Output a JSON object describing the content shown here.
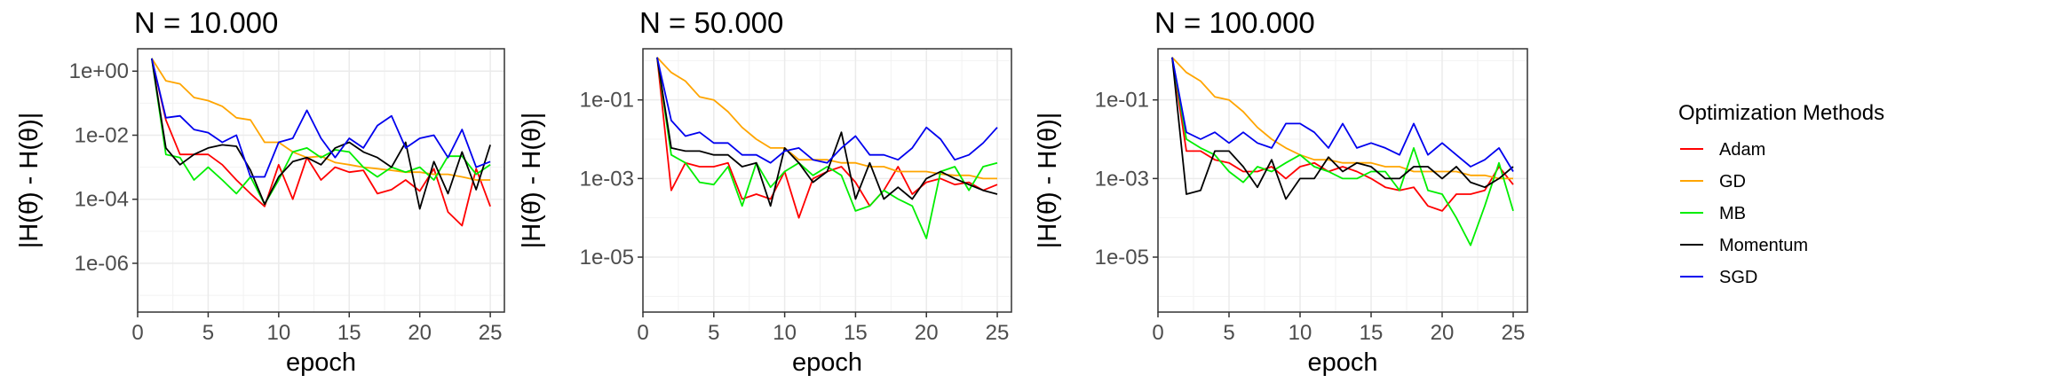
{
  "chart_data": {
    "type": "line",
    "y_scale": "log10",
    "grid": true,
    "legend": {
      "title": "Optimization Methods",
      "position": "right",
      "items": [
        {
          "name": "Adam",
          "color": "#ff0000"
        },
        {
          "name": "GD",
          "color": "#ffa500"
        },
        {
          "name": "MB",
          "color": "#00ee00"
        },
        {
          "name": "Momentum",
          "color": "#000000"
        },
        {
          "name": "SGD",
          "color": "#0000ee"
        }
      ]
    },
    "panels": [
      {
        "title": "N = 10.000",
        "xlabel": "epoch",
        "ylabel": "|H(θ̂) - H(θ)|",
        "xlim": [
          0,
          26
        ],
        "ylim": [
          3e-08,
          5
        ],
        "x_ticks": [
          0,
          5,
          10,
          15,
          20,
          25
        ],
        "x_tick_labels": [
          "0",
          "5",
          "10",
          "15",
          "20",
          "25"
        ],
        "y_ticks": [
          1e-06,
          0.0001,
          0.01,
          1
        ],
        "y_tick_labels": [
          "1e-06",
          "1e-04",
          "1e-02",
          "1e+00"
        ],
        "x": [
          1,
          2,
          3,
          4,
          5,
          6,
          7,
          8,
          9,
          10,
          11,
          12,
          13,
          14,
          15,
          16,
          17,
          18,
          19,
          20,
          21,
          22,
          23,
          24,
          25
        ],
        "series": [
          {
            "name": "Adam",
            "color": "#ff0000",
            "values": [
              2.5,
              0.03,
              0.0025,
              0.0025,
              0.0025,
              0.0012,
              0.0004,
              0.00015,
              6e-05,
              0.0012,
              0.0001,
              0.002,
              0.0004,
              0.001,
              0.0007,
              0.0008,
              0.00015,
              0.0002,
              0.0004,
              0.00018,
              0.0009,
              4e-05,
              1.5e-05,
              0.0009,
              6e-05
            ]
          },
          {
            "name": "GD",
            "color": "#ffa500",
            "values": [
              2.5,
              0.5,
              0.4,
              0.15,
              0.12,
              0.08,
              0.035,
              0.03,
              0.006,
              0.006,
              0.003,
              0.002,
              0.0022,
              0.0014,
              0.0012,
              0.001,
              0.0009,
              0.0008,
              0.0007,
              0.0007,
              0.0006,
              0.0006,
              0.0005,
              0.0004,
              0.0004
            ]
          },
          {
            "name": "MB",
            "color": "#00ee00",
            "values": [
              2.5,
              0.0025,
              0.002,
              0.0004,
              0.001,
              0.0004,
              0.00015,
              0.0005,
              7e-05,
              0.0004,
              0.003,
              0.004,
              0.002,
              0.0035,
              0.003,
              0.001,
              0.0005,
              0.001,
              0.0007,
              0.001,
              0.0004,
              0.0022,
              0.0022,
              0.0006,
              0.0012
            ]
          },
          {
            "name": "Momentum",
            "color": "#000000",
            "values": [
              2.5,
              0.004,
              0.0012,
              0.0025,
              0.004,
              0.005,
              0.0045,
              0.0008,
              7e-05,
              0.0005,
              0.0015,
              0.002,
              0.0012,
              0.004,
              0.006,
              0.003,
              0.002,
              0.001,
              0.006,
              5e-05,
              0.0015,
              0.00015,
              0.003,
              0.0002,
              0.005
            ]
          },
          {
            "name": "SGD",
            "color": "#0000ee",
            "values": [
              2.5,
              0.035,
              0.04,
              0.015,
              0.012,
              0.006,
              0.01,
              0.0005,
              0.0005,
              0.006,
              0.008,
              0.06,
              0.008,
              0.002,
              0.008,
              0.004,
              0.02,
              0.04,
              0.004,
              0.008,
              0.01,
              0.002,
              0.015,
              0.001,
              0.0015
            ]
          }
        ]
      },
      {
        "title": "N = 50.000",
        "xlabel": "epoch",
        "ylabel": "|H(θ̂) - H(θ)|",
        "xlim": [
          0,
          26
        ],
        "ylim": [
          4e-07,
          2
        ],
        "x_ticks": [
          0,
          5,
          10,
          15,
          20,
          25
        ],
        "x_tick_labels": [
          "0",
          "5",
          "10",
          "15",
          "20",
          "25"
        ],
        "y_ticks": [
          1e-05,
          0.001,
          0.1
        ],
        "y_tick_labels": [
          "1e-05",
          "1e-03",
          "1e-01"
        ],
        "x": [
          1,
          2,
          3,
          4,
          5,
          6,
          7,
          8,
          9,
          10,
          11,
          12,
          13,
          14,
          15,
          16,
          17,
          18,
          19,
          20,
          21,
          22,
          23,
          24,
          25
        ],
        "series": [
          {
            "name": "Adam",
            "color": "#ff0000",
            "values": [
              1.2,
              0.0005,
              0.0025,
              0.002,
              0.002,
              0.0025,
              0.0003,
              0.0004,
              0.0003,
              0.0015,
              0.0001,
              0.001,
              0.0015,
              0.002,
              0.0008,
              0.0002,
              0.0005,
              0.002,
              0.0004,
              0.0008,
              0.001,
              0.0007,
              0.0008,
              0.0005,
              0.0007
            ]
          },
          {
            "name": "GD",
            "color": "#ffa500",
            "values": [
              1.2,
              0.5,
              0.3,
              0.12,
              0.1,
              0.05,
              0.02,
              0.01,
              0.006,
              0.006,
              0.003,
              0.003,
              0.003,
              0.0025,
              0.0025,
              0.002,
              0.002,
              0.0015,
              0.0015,
              0.0015,
              0.0013,
              0.0012,
              0.0012,
              0.001,
              0.001
            ]
          },
          {
            "name": "MB",
            "color": "#00ee00",
            "values": [
              1.2,
              0.004,
              0.0025,
              0.0008,
              0.0007,
              0.002,
              0.0002,
              0.0025,
              0.0006,
              0.0015,
              0.0025,
              0.0012,
              0.002,
              0.0012,
              0.00015,
              0.0002,
              0.0005,
              0.0003,
              0.0002,
              3e-05,
              0.0015,
              0.002,
              0.0005,
              0.002,
              0.0025
            ]
          },
          {
            "name": "Momentum",
            "color": "#000000",
            "values": [
              1.2,
              0.006,
              0.005,
              0.005,
              0.004,
              0.004,
              0.002,
              0.0025,
              0.0002,
              0.006,
              0.0025,
              0.0008,
              0.0015,
              0.015,
              0.0003,
              0.0025,
              0.0003,
              0.0006,
              0.0003,
              0.001,
              0.0015,
              0.001,
              0.0007,
              0.0005,
              0.0004
            ]
          },
          {
            "name": "SGD",
            "color": "#0000ee",
            "values": [
              1.2,
              0.03,
              0.012,
              0.015,
              0.008,
              0.008,
              0.004,
              0.004,
              0.0025,
              0.005,
              0.006,
              0.003,
              0.0025,
              0.006,
              0.012,
              0.004,
              0.004,
              0.003,
              0.006,
              0.02,
              0.01,
              0.003,
              0.004,
              0.008,
              0.02
            ]
          }
        ]
      },
      {
        "title": "N = 100.000",
        "xlabel": "epoch",
        "ylabel": "|H(θ̂) - H(θ)|",
        "xlim": [
          0,
          26
        ],
        "ylim": [
          4e-07,
          2
        ],
        "x_ticks": [
          0,
          5,
          10,
          15,
          20,
          25
        ],
        "x_tick_labels": [
          "0",
          "5",
          "10",
          "15",
          "20",
          "25"
        ],
        "y_ticks": [
          1e-05,
          0.001,
          0.1
        ],
        "y_tick_labels": [
          "1e-05",
          "1e-03",
          "1e-01"
        ],
        "x": [
          1,
          2,
          3,
          4,
          5,
          6,
          7,
          8,
          9,
          10,
          11,
          12,
          13,
          14,
          15,
          16,
          17,
          18,
          19,
          20,
          21,
          22,
          23,
          24,
          25
        ],
        "series": [
          {
            "name": "Adam",
            "color": "#ff0000",
            "values": [
              1.2,
              0.005,
              0.005,
              0.003,
              0.0025,
              0.0015,
              0.0015,
              0.002,
              0.001,
              0.002,
              0.0025,
              0.0015,
              0.002,
              0.0015,
              0.001,
              0.0006,
              0.0005,
              0.0006,
              0.0002,
              0.00015,
              0.0004,
              0.0004,
              0.0005,
              0.002,
              0.0007
            ]
          },
          {
            "name": "GD",
            "color": "#ffa500",
            "values": [
              1.2,
              0.5,
              0.3,
              0.12,
              0.1,
              0.05,
              0.02,
              0.01,
              0.006,
              0.004,
              0.003,
              0.003,
              0.0025,
              0.0025,
              0.0025,
              0.002,
              0.002,
              0.0015,
              0.0015,
              0.0015,
              0.0015,
              0.0012,
              0.0012,
              0.001,
              0.001
            ]
          },
          {
            "name": "MB",
            "color": "#00ee00",
            "values": [
              1.2,
              0.01,
              0.006,
              0.004,
              0.0015,
              0.0008,
              0.002,
              0.0015,
              0.0025,
              0.004,
              0.002,
              0.0015,
              0.001,
              0.001,
              0.0015,
              0.0015,
              0.0005,
              0.006,
              0.0005,
              0.0004,
              0.0001,
              2e-05,
              0.0002,
              0.0025,
              0.00015
            ]
          },
          {
            "name": "Momentum",
            "color": "#000000",
            "values": [
              1.2,
              0.0004,
              0.0005,
              0.005,
              0.005,
              0.002,
              0.0006,
              0.003,
              0.0003,
              0.001,
              0.001,
              0.0035,
              0.0015,
              0.0025,
              0.002,
              0.001,
              0.001,
              0.002,
              0.002,
              0.001,
              0.002,
              0.0008,
              0.0006,
              0.001,
              0.002
            ]
          },
          {
            "name": "SGD",
            "color": "#0000ee",
            "values": [
              1.2,
              0.015,
              0.01,
              0.015,
              0.008,
              0.015,
              0.008,
              0.006,
              0.025,
              0.025,
              0.015,
              0.006,
              0.025,
              0.006,
              0.008,
              0.006,
              0.004,
              0.025,
              0.004,
              0.008,
              0.004,
              0.002,
              0.003,
              0.006,
              0.0015
            ]
          }
        ]
      }
    ]
  }
}
